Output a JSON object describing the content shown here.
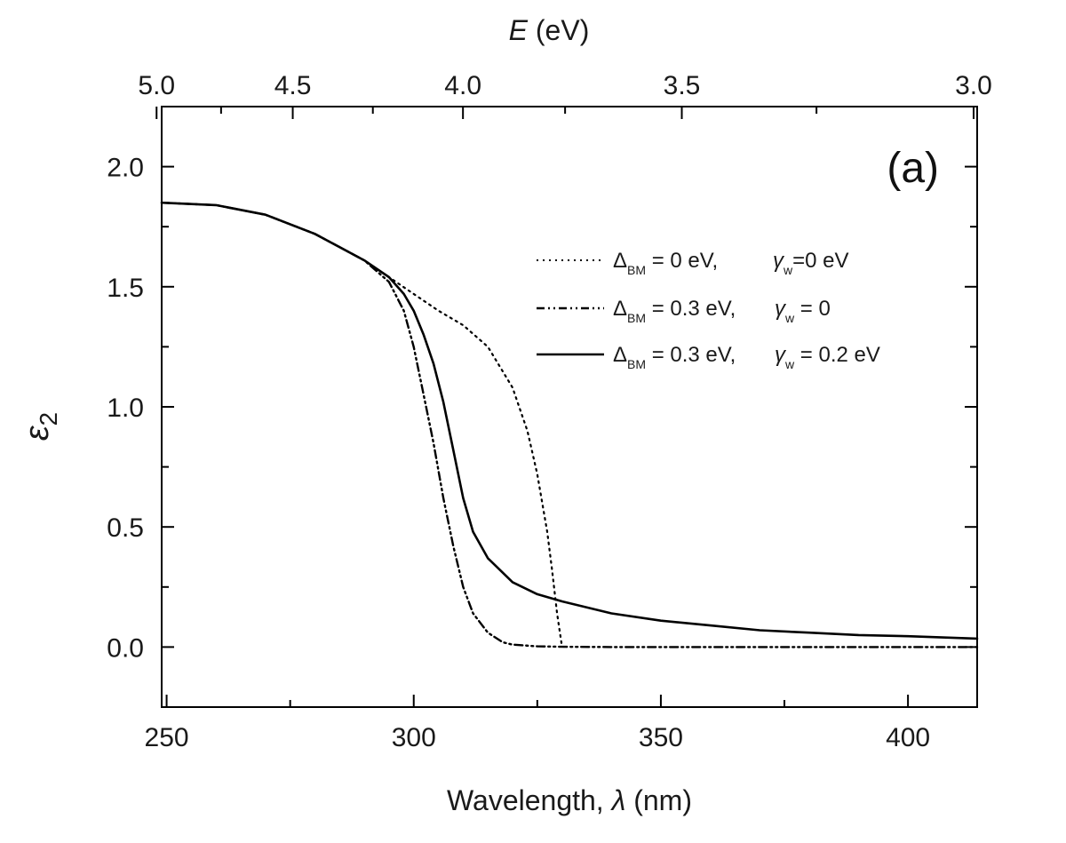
{
  "chart_data": {
    "type": "line",
    "panel_label": "(a)",
    "xlabel": {
      "text": "Wavelength, ",
      "symbol": "λ",
      "unit": " (nm)"
    },
    "ylabel": {
      "symbol": "ε",
      "sub": "2"
    },
    "top_xlabel": {
      "symbol": "E",
      "unit": " (eV)"
    },
    "xlim": [
      249,
      414
    ],
    "ylim": [
      -0.25,
      2.25
    ],
    "x_ticks": [
      250,
      300,
      350,
      400
    ],
    "y_ticks": [
      0.0,
      0.5,
      1.0,
      1.5,
      2.0
    ],
    "top_x_ticks": [
      5.0,
      4.5,
      4.0,
      3.5,
      3.0
    ],
    "grid": false,
    "legend_position": "top-right",
    "series": [
      {
        "legend_parts": {
          "d": "Δ",
          "dsub": "BM",
          "d_val": " = 0 eV,",
          "g": "γ",
          "gsub": "w",
          "g_val": "=0 eV"
        },
        "style": "dotted",
        "x": [
          249,
          260,
          270,
          280,
          290,
          295,
          300,
          305,
          310,
          315,
          320,
          323,
          325,
          327,
          328,
          329,
          330
        ],
        "y": [
          1.85,
          1.84,
          1.8,
          1.72,
          1.61,
          1.54,
          1.47,
          1.4,
          1.34,
          1.25,
          1.08,
          0.9,
          0.72,
          0.48,
          0.32,
          0.14,
          0.0
        ]
      },
      {
        "legend_parts": {
          "d": "Δ",
          "dsub": "BM",
          "d_val": " = 0.3 eV,",
          "g": "γ",
          "gsub": "w",
          "g_val": " = 0"
        },
        "style": "dash-dot-dot",
        "x": [
          249,
          260,
          270,
          280,
          290,
          295,
          298,
          300,
          302,
          304,
          306,
          308,
          310,
          312,
          315,
          318,
          320,
          325,
          330,
          340,
          360,
          380,
          400,
          414
        ],
        "y": [
          1.85,
          1.84,
          1.8,
          1.72,
          1.61,
          1.52,
          1.4,
          1.25,
          1.05,
          0.85,
          0.62,
          0.42,
          0.25,
          0.14,
          0.06,
          0.02,
          0.01,
          0.003,
          0.001,
          0.0,
          0.0,
          0.0,
          0.0,
          0.0
        ]
      },
      {
        "legend_parts": {
          "d": "Δ",
          "dsub": "BM",
          "d_val": " = 0.3 eV,",
          "g": "γ",
          "gsub": "w",
          "g_val": " = 0.2 eV"
        },
        "style": "solid",
        "x": [
          249,
          260,
          270,
          280,
          290,
          295,
          298,
          300,
          302,
          304,
          306,
          308,
          310,
          312,
          315,
          320,
          325,
          330,
          340,
          350,
          360,
          370,
          380,
          390,
          400,
          414
        ],
        "y": [
          1.85,
          1.84,
          1.8,
          1.72,
          1.61,
          1.54,
          1.47,
          1.4,
          1.3,
          1.18,
          1.02,
          0.82,
          0.62,
          0.48,
          0.37,
          0.27,
          0.22,
          0.19,
          0.14,
          0.11,
          0.09,
          0.07,
          0.06,
          0.05,
          0.045,
          0.035
        ]
      }
    ]
  }
}
